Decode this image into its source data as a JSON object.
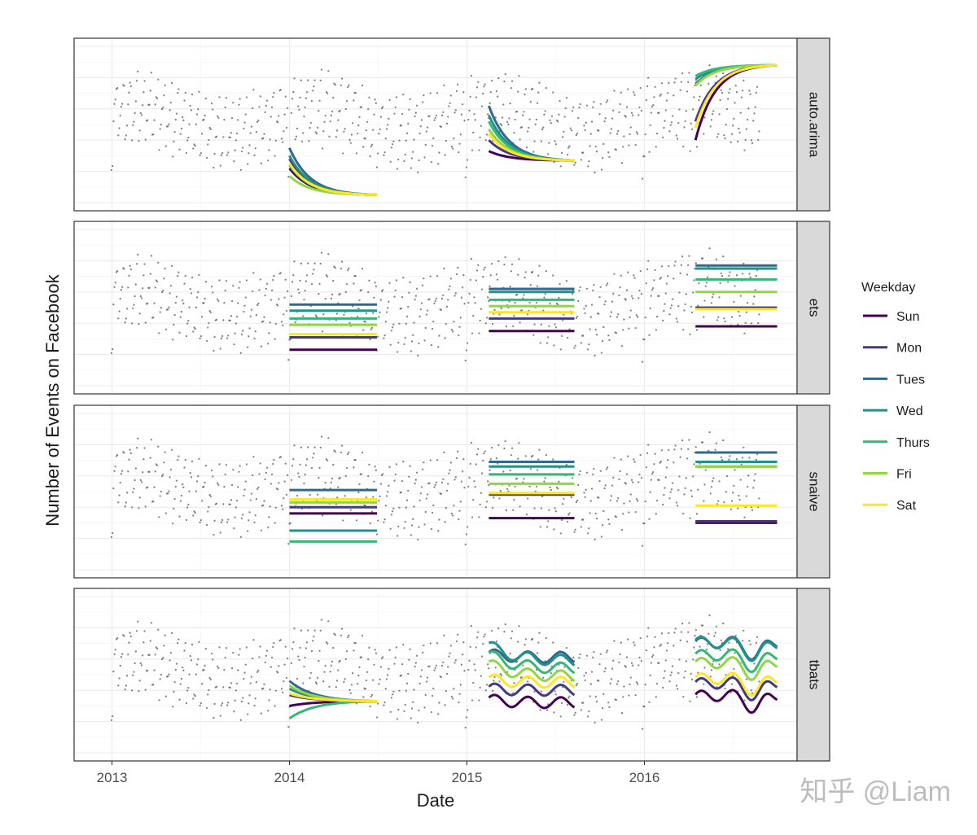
{
  "chart_data": {
    "type": "line",
    "xlabel": "Date",
    "ylabel": "Number of Events on Facebook",
    "x_ticks": [
      "2013",
      "2014",
      "2015",
      "2016"
    ],
    "xlim": [
      "2012-10-15",
      "2016-11-10"
    ],
    "ylim": [
      0,
      100
    ],
    "grid": true,
    "legend": {
      "title": "Weekday",
      "position": "right",
      "entries": [
        "Sun",
        "Mon",
        "Tues",
        "Wed",
        "Thurs",
        "Fri",
        "Sat"
      ],
      "colors": [
        "#440154",
        "#443983",
        "#31688e",
        "#21918c",
        "#35b779",
        "#90d743",
        "#fde725"
      ]
    },
    "forecast_windows": [
      [
        "2014-01-01",
        "2014-06-30"
      ],
      [
        "2015-02-15",
        "2015-08-10"
      ],
      [
        "2016-04-15",
        "2016-09-30"
      ]
    ],
    "panels": [
      {
        "label": "auto.arima",
        "kind": "curve",
        "windows": [
          {
            "start": [
              22,
              28,
              35,
              30,
              24,
              17,
              25
            ],
            "end": [
              5,
              5,
              5,
              5,
              5,
              5,
              5
            ]
          },
          {
            "start": [
              33,
              40,
              62,
              56,
              52,
              47,
              44
            ],
            "end": [
              27,
              27,
              27,
              27,
              27,
              27,
              27
            ]
          },
          {
            "start": [
              40,
              52,
              76,
              79,
              81,
              75,
              48
            ],
            "end": [
              88,
              88,
              88,
              88,
              88,
              88,
              88
            ]
          }
        ]
      },
      {
        "label": "ets",
        "kind": "flat",
        "windows": [
          {
            "values": [
              23,
              31,
              52,
              48,
              43,
              39,
              33
            ]
          },
          {
            "values": [
              35,
              43,
              62,
              60,
              55,
              51,
              47
            ]
          },
          {
            "values": [
              38,
              50,
              77,
              75,
              68,
              60,
              49
            ]
          }
        ]
      },
      {
        "label": "snaive",
        "kind": "flat",
        "windows": [
          {
            "values": [
              36,
              40,
              51,
              25,
              18,
              43,
              45
            ]
          },
          {
            "values": [
              33,
              48,
              69,
              66,
              61,
              55,
              49
            ]
          },
          {
            "values": [
              30,
              31,
              75,
              69,
              66,
              66,
              41
            ]
          }
        ]
      },
      {
        "label": "tbats",
        "kind": "wavy",
        "windows": [
          {
            "start": [
              30,
              37,
              46,
              41,
              22,
              43,
              38
            ],
            "end": [
              33,
              33,
              33,
              33,
              33,
              33,
              33
            ]
          },
          {
            "start": [
              34,
              41,
              63,
              69,
              63,
              57,
              47
            ],
            "end": [
              32,
              40,
              61,
              59,
              54,
              49,
              45
            ]
          },
          {
            "start": [
              36,
              44,
              70,
              71,
              62,
              57,
              47
            ],
            "end": [
              37,
              45,
              71,
              70,
              63,
              58,
              48
            ]
          }
        ]
      }
    ]
  },
  "watermark": "知乎 @Liam"
}
